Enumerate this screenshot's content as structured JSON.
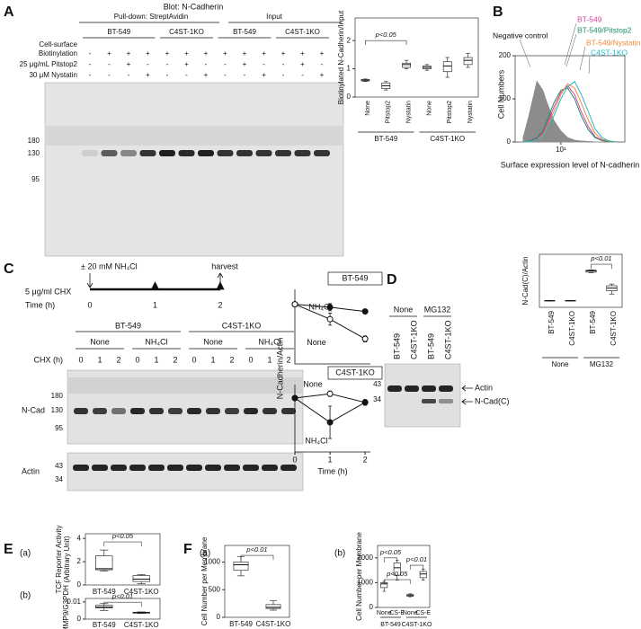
{
  "panels": {
    "A": {
      "label": "A",
      "blot_title": "Blot: N-Cadherin",
      "pulldown": "Pull-down: StreptAvidin",
      "input": "Input",
      "groups": [
        "BT-549",
        "C4ST-1KO",
        "BT-549",
        "C4ST-1KO"
      ],
      "row_labels": [
        "Cell-surface",
        "Biotinylation",
        "25 μg/mL Pitstop2",
        "30 μM Nystatin"
      ],
      "biotinylation": [
        "-",
        "+",
        "+",
        "+",
        "+",
        "+",
        "+",
        "+",
        "+",
        "+",
        "+",
        "+",
        "+"
      ],
      "pitstop2": [
        "-",
        "-",
        "+",
        "-",
        "-",
        "+",
        "-",
        "-",
        "+",
        "-",
        "-",
        "+",
        "-"
      ],
      "nystatin": [
        "-",
        "-",
        "-",
        "+",
        "-",
        "-",
        "+",
        "-",
        "-",
        "+",
        "-",
        "-",
        "+"
      ],
      "mw": [
        180,
        130,
        95
      ],
      "chart": {
        "type": "box",
        "ylabel": "Biotinylated N-Cadherin/Input",
        "ylim": [
          0,
          2.8
        ],
        "yticks": [
          0,
          1,
          2
        ],
        "groups": [
          {
            "label": "BT-549",
            "boxes": [
              {
                "category": "None",
                "min": 0.55,
                "q1": 0.57,
                "median": 0.6,
                "q3": 0.62,
                "max": 0.64
              },
              {
                "category": "Pitstop2",
                "min": 0.25,
                "q1": 0.3,
                "median": 0.4,
                "q3": 0.5,
                "max": 0.55
              },
              {
                "category": "Nystatin",
                "min": 1.0,
                "q1": 1.05,
                "median": 1.15,
                "q3": 1.2,
                "max": 1.3
              }
            ]
          },
          {
            "label": "C4ST-1KO",
            "boxes": [
              {
                "category": "None",
                "min": 0.95,
                "q1": 1.0,
                "median": 1.05,
                "q3": 1.1,
                "max": 1.15
              },
              {
                "category": "Pitstop2",
                "min": 0.7,
                "q1": 0.9,
                "median": 1.1,
                "q3": 1.25,
                "max": 1.4
              },
              {
                "category": "Nystatin",
                "min": 1.05,
                "q1": 1.15,
                "median": 1.3,
                "q3": 1.4,
                "max": 1.55
              }
            ]
          }
        ],
        "annotations": [
          "p<0.05"
        ]
      }
    },
    "B": {
      "label": "B",
      "chart": {
        "type": "line",
        "ylabel": "Cell Numbers",
        "xlabel": "Surface expression level of N-cadherin",
        "log_x": true,
        "xlim": [
          1,
          250
        ],
        "xticks": [
          {
            "value": 10,
            "label": "10¹"
          }
        ],
        "ylim": [
          0,
          200
        ],
        "yticks": [
          0,
          100,
          200
        ],
        "x": [
          1.5,
          2,
          3,
          4,
          5,
          7,
          10,
          14,
          20,
          28,
          40,
          56,
          80,
          110,
          160
        ],
        "series": [
          {
            "name": "Negative control",
            "color": "#8c8c8c",
            "fill": true,
            "values": [
              10,
              60,
              140,
              120,
              90,
              50,
              25,
              10,
              4,
              2,
              1,
              0,
              0,
              0,
              0
            ]
          },
          {
            "name": "BT-549",
            "color": "#d6409f",
            "values": [
              0,
              2,
              8,
              20,
              40,
              80,
              115,
              130,
              110,
              70,
              35,
              12,
              4,
              1,
              0
            ]
          },
          {
            "name": "BT-549/Pitstop2",
            "color": "#1f8a70",
            "values": [
              0,
              2,
              10,
              25,
              50,
              90,
              120,
              125,
              100,
              60,
              28,
              10,
              3,
              1,
              0
            ]
          },
          {
            "name": "BT-549/Nystatin",
            "color": "#f08a3c",
            "values": [
              0,
              1,
              5,
              15,
              35,
              70,
              110,
              135,
              125,
              90,
              50,
              20,
              6,
              2,
              0
            ]
          },
          {
            "name": "C4ST-1KO",
            "color": "#25b8c8",
            "values": [
              0,
              1,
              4,
              12,
              30,
              60,
              100,
              128,
              140,
              110,
              70,
              30,
              10,
              3,
              0
            ]
          }
        ]
      }
    },
    "C": {
      "label": "C",
      "treatment": "± 20 mM NH₄Cl",
      "harvest": "harvest",
      "chx": "5 μg/ml CHX",
      "time_label": "Time (h)",
      "time_points": [
        0,
        1,
        2
      ],
      "groups": [
        "BT-549",
        "C4ST-1KO"
      ],
      "conditions": [
        "None",
        "NH₄Cl",
        "None",
        "NH₄Cl"
      ],
      "chx_label": "CHX (h)",
      "lanes": [
        0,
        1,
        2,
        0,
        1,
        2,
        0,
        1,
        2,
        0,
        1,
        2
      ],
      "mw": [
        180,
        130,
        95
      ],
      "ncad": "N-Cad",
      "actin": "Actin",
      "actin_mw": [
        43,
        34
      ],
      "ylabel": "N-Cadherin/Actin",
      "charts": [
        {
          "type": "line",
          "title": "BT-549",
          "x": [
            0,
            1,
            2
          ],
          "xlim": [
            0,
            2.15
          ],
          "ylim": [
            0,
            1.25
          ],
          "series": [
            {
              "name": "NH₄Cl",
              "marker": "filled",
              "values": [
                1,
                0.95,
                0.88
              ],
              "errors": [
                0,
                0.06,
                0.04
              ]
            },
            {
              "name": "None",
              "marker": "open",
              "values": [
                1,
                0.75,
                0.42
              ],
              "errors": [
                0,
                0.1,
                0.05
              ]
            }
          ]
        },
        {
          "type": "line",
          "title": "C4ST-1KO",
          "x": [
            0,
            1,
            2
          ],
          "xlim": [
            0,
            2.15
          ],
          "ylim": [
            0,
            1.25
          ],
          "xticks": [
            0,
            1,
            2
          ],
          "xlabel": "Time (h)",
          "series": [
            {
              "name": "None",
              "marker": "open",
              "values": [
                1,
                1.08,
                0.92
              ],
              "errors": [
                0,
                0.05,
                0.05
              ]
            },
            {
              "name": "NH₄Cl",
              "marker": "filled",
              "values": [
                1,
                0.55,
                0.92
              ],
              "errors": [
                0,
                0.3,
                0.05
              ]
            }
          ]
        }
      ]
    },
    "D": {
      "label": "D",
      "conditions": [
        "None",
        "MG132"
      ],
      "lanes": [
        "BT-549",
        "C4ST-1KO",
        "BT-549",
        "C4ST-1KO"
      ],
      "mw": [
        43,
        34
      ],
      "bands": [
        "Actin",
        "N-Cad(C)"
      ],
      "chart": {
        "type": "box",
        "ylabel": "N-Cad(C)/Actin",
        "ylim": [
          0,
          0.16
        ],
        "groups": [
          {
            "label": "None",
            "boxes": [
              {
                "category": "BT-549",
                "min": 0.019,
                "q1": 0.0195,
                "median": 0.02,
                "q3": 0.0205,
                "max": 0.021
              },
              {
                "category": "C4ST-1KO",
                "min": 0.019,
                "q1": 0.0195,
                "median": 0.02,
                "q3": 0.0205,
                "max": 0.021
              }
            ]
          },
          {
            "label": "MG132",
            "boxes": [
              {
                "category": "BT-549",
                "min": 0.104,
                "q1": 0.106,
                "median": 0.11,
                "q3": 0.112,
                "max": 0.113
              },
              {
                "category": "C4ST-1KO",
                "min": 0.04,
                "q1": 0.05,
                "median": 0.058,
                "q3": 0.065,
                "max": 0.07
              }
            ]
          }
        ],
        "annotations": [
          "p<0.01"
        ]
      }
    },
    "E": {
      "label": "E",
      "charts": [
        {
          "type": "box",
          "sublabel": "(a)",
          "ylabel": [
            "TCF Reporter Activity",
            "(Arbitrary Unit)"
          ],
          "ylim": [
            0,
            4.4
          ],
          "yticks": [
            0,
            2,
            4
          ],
          "boxes": [
            {
              "category": "BT-549",
              "min": 1.2,
              "q1": 1.3,
              "median": 1.4,
              "q3": 2.5,
              "max": 3.0
            },
            {
              "category": "C4ST-1KO",
              "min": 0.1,
              "q1": 0.3,
              "median": 0.5,
              "q3": 0.8,
              "max": 0.9
            }
          ],
          "annotations": [
            "p<0.05"
          ]
        },
        {
          "type": "box",
          "sublabel": "(b)",
          "ylabel": "MMP9/G3PDH",
          "ylim": [
            0,
            0.012
          ],
          "yticks": [
            0,
            0.01
          ],
          "boxes": [
            {
              "category": "BT-549",
              "min": 0.005,
              "q1": 0.0065,
              "median": 0.007,
              "q3": 0.008,
              "max": 0.009
            },
            {
              "category": "C4ST-1KO",
              "min": 0.0033,
              "q1": 0.0035,
              "median": 0.0037,
              "q3": 0.004,
              "max": 0.0042
            }
          ],
          "annotations": [
            "p<0.01"
          ]
        }
      ]
    },
    "F": {
      "label": "F",
      "charts": [
        {
          "type": "box",
          "sublabel": "(a)",
          "ylabel": "Cell Number per Membrane",
          "ylim": [
            0,
            1300
          ],
          "yticks": [
            0,
            500,
            1000
          ],
          "boxes": [
            {
              "category": "BT-549",
              "min": 750,
              "q1": 850,
              "median": 950,
              "q3": 1000,
              "max": 1100
            },
            {
              "category": "C4ST-1KO",
              "min": 130,
              "q1": 160,
              "median": 180,
              "q3": 230,
              "max": 300
            }
          ],
          "annotations": [
            "p<0.01"
          ]
        },
        {
          "type": "box",
          "sublabel": "(b)",
          "ylabel": "Cell Number per Membrane",
          "ylim": [
            0,
            2500
          ],
          "yticks": [
            0,
            1000,
            2000
          ],
          "groups": [
            {
              "label": "BT-549",
              "boxes": [
                {
                  "category": "None",
                  "min": 650,
                  "q1": 800,
                  "median": 950,
                  "q3": 1000,
                  "max": 1050
                },
                {
                  "category": "CS-E",
                  "min": 1100,
                  "q1": 1300,
                  "median": 1600,
                  "q3": 1800,
                  "max": 1900
                }
              ]
            },
            {
              "label": "C4ST-1KO",
              "boxes": [
                {
                  "category": "None",
                  "min": 430,
                  "q1": 450,
                  "median": 480,
                  "q3": 520,
                  "max": 550
                },
                {
                  "category": "CS-E",
                  "min": 1100,
                  "q1": 1200,
                  "median": 1350,
                  "q3": 1450,
                  "max": 1550
                }
              ]
            }
          ],
          "annotations": [
            "p<0.05",
            "p<0.05",
            "p<0.01"
          ]
        }
      ]
    }
  }
}
